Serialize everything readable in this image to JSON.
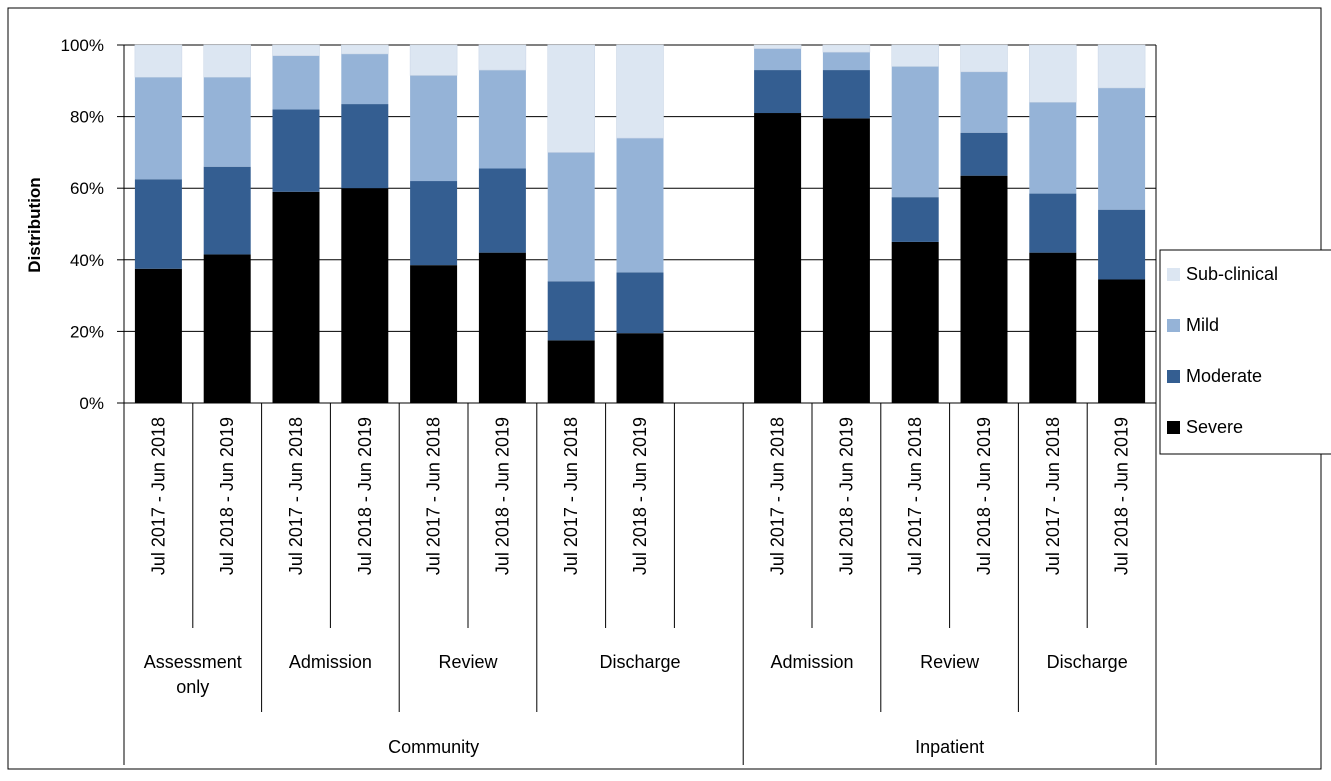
{
  "chart_data": {
    "type": "bar",
    "stacked": "percent",
    "ylabel": "Distribution",
    "ylim": [
      0,
      100
    ],
    "yticks": [
      "0%",
      "20%",
      "40%",
      "60%",
      "80%",
      "100%"
    ],
    "grid": true,
    "legend_position": "right",
    "categories": [
      {
        "period": "Jul 2017 - Jun 2018",
        "stage": "Assessment only",
        "setting": "Community"
      },
      {
        "period": "Jul 2018 - Jun 2019",
        "stage": "Assessment only",
        "setting": "Community"
      },
      {
        "period": "Jul 2017 - Jun 2018",
        "stage": "Admission",
        "setting": "Community"
      },
      {
        "period": "Jul 2018 - Jun 2019",
        "stage": "Admission",
        "setting": "Community"
      },
      {
        "period": "Jul 2017 - Jun 2018",
        "stage": "Review",
        "setting": "Community"
      },
      {
        "period": "Jul 2018 - Jun 2019",
        "stage": "Review",
        "setting": "Community"
      },
      {
        "period": "Jul 2017 - Jun 2018",
        "stage": "Discharge",
        "setting": "Community"
      },
      {
        "period": "Jul 2018 - Jun 2019",
        "stage": "Discharge",
        "setting": "Community"
      },
      {
        "period": "",
        "stage": "Discharge",
        "setting": "Community"
      },
      {
        "period": "Jul 2017 - Jun 2018",
        "stage": "Admission",
        "setting": "Inpatient"
      },
      {
        "period": "Jul 2018 - Jun 2019",
        "stage": "Admission",
        "setting": "Inpatient"
      },
      {
        "period": "Jul 2017 - Jun 2018",
        "stage": "Review",
        "setting": "Inpatient"
      },
      {
        "period": "Jul 2018 - Jun 2019",
        "stage": "Review",
        "setting": "Inpatient"
      },
      {
        "period": "Jul 2017 - Jun 2018",
        "stage": "Discharge",
        "setting": "Inpatient"
      },
      {
        "period": "Jul 2018 - Jun 2019",
        "stage": "Discharge",
        "setting": "Inpatient"
      }
    ],
    "stage_groups": [
      {
        "label": "Assessment only",
        "count": 2
      },
      {
        "label": "Admission",
        "count": 2
      },
      {
        "label": "Review",
        "count": 2
      },
      {
        "label": "Discharge",
        "count": 3
      },
      {
        "label": "Admission",
        "count": 2
      },
      {
        "label": "Review",
        "count": 2
      },
      {
        "label": "Discharge",
        "count": 2
      }
    ],
    "setting_groups": [
      {
        "label": "Community",
        "count": 9
      },
      {
        "label": "Inpatient",
        "count": 6
      }
    ],
    "series": [
      {
        "name": "Severe",
        "color": "#000000",
        "values": [
          37.5,
          41.5,
          59,
          60,
          38.5,
          42,
          17.5,
          19.5,
          null,
          81,
          79.5,
          45,
          63.5,
          42,
          34.5
        ]
      },
      {
        "name": "Moderate",
        "color": "#345e91",
        "values": [
          25,
          24.5,
          23,
          23.5,
          23.5,
          23.5,
          16.5,
          17,
          null,
          12,
          13.5,
          12.5,
          12,
          16.5,
          19.5
        ]
      },
      {
        "name": "Mild",
        "color": "#95b3d7",
        "values": [
          28.5,
          25,
          15,
          14,
          29.5,
          27.5,
          36,
          37.5,
          null,
          6,
          5,
          36.5,
          17,
          25.5,
          34
        ]
      },
      {
        "name": "Sub-clinical",
        "color": "#dce6f2",
        "values": [
          9,
          9,
          3,
          2.5,
          8.5,
          7,
          30,
          26,
          null,
          1,
          2,
          6,
          7.5,
          16,
          12
        ]
      }
    ],
    "legend_order": [
      "Sub-clinical",
      "Mild",
      "Moderate",
      "Severe"
    ]
  }
}
